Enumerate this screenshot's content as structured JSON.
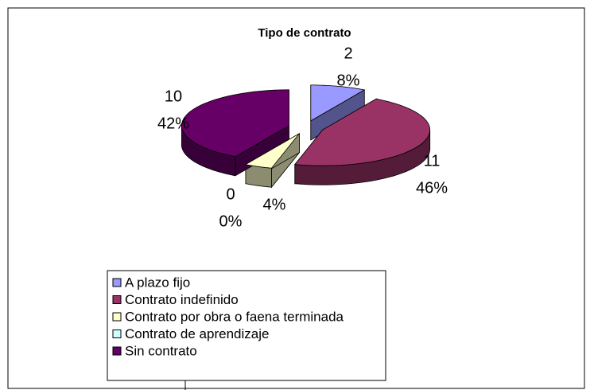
{
  "chart_data": {
    "type": "pie3d",
    "title": "Tipo de contrato",
    "categories": [
      "A plazo fijo",
      "Contrato indefinido",
      "Contrato por obra o faena terminada",
      "Contrato de aprendizaje",
      "Sin contrato"
    ],
    "values": [
      2,
      11,
      1,
      0,
      10
    ],
    "value_labels": [
      "2",
      "11",
      null,
      "0",
      "10"
    ],
    "percent_labels": [
      "8%",
      "46%",
      "4%",
      "0%",
      "42%"
    ],
    "colors": [
      "#9999ff",
      "#993366",
      "#ffffcc",
      "#ccffff",
      "#660066"
    ],
    "legend": "bottom"
  }
}
